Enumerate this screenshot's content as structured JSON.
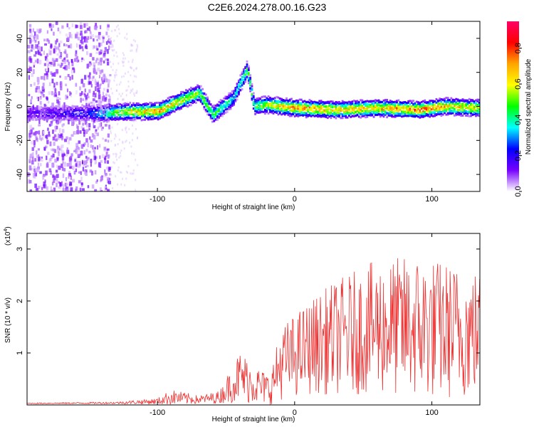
{
  "title": "C2E6.2024.278.00.16.G23",
  "chart_data": [
    {
      "type": "heatmap",
      "xlabel": "Height of straight line (km)",
      "ylabel": "Frequency (Hz)",
      "xlim": [
        -195,
        135
      ],
      "ylim": [
        -50,
        50
      ],
      "xticks": [
        -100,
        0,
        100
      ],
      "yticks": [
        -40,
        -20,
        0,
        20,
        40
      ],
      "colorbar": {
        "label": "Normalized spectral amplitude",
        "range": [
          0,
          0.95
        ],
        "ticks": [
          0.0,
          0.2,
          0.4,
          0.6,
          0.8
        ],
        "colormap": [
          "#ff0066",
          "#ff0000",
          "#ffa500",
          "#ffff00",
          "#00ff00",
          "#00ffff",
          "#0000ff",
          "#7700ff",
          "#ffffff"
        ]
      },
      "ridge": [
        {
          "x": -195,
          "f": -4,
          "a": 0.15
        },
        {
          "x": -150,
          "f": -4,
          "a": 0.25
        },
        {
          "x": -140,
          "f": -4,
          "a": 0.45
        },
        {
          "x": -120,
          "f": -3,
          "a": 0.65
        },
        {
          "x": -100,
          "f": -3,
          "a": 0.75
        },
        {
          "x": -90,
          "f": 1,
          "a": 0.7
        },
        {
          "x": -70,
          "f": 8,
          "a": 0.55
        },
        {
          "x": -60,
          "f": -5,
          "a": 0.5
        },
        {
          "x": -45,
          "f": 5,
          "a": 0.4
        },
        {
          "x": -35,
          "f": 22,
          "a": 0.5
        },
        {
          "x": -30,
          "f": 0,
          "a": 0.5
        },
        {
          "x": -20,
          "f": 1,
          "a": 0.6
        },
        {
          "x": 0,
          "f": -1,
          "a": 0.75
        },
        {
          "x": 30,
          "f": -2,
          "a": 0.7
        },
        {
          "x": 60,
          "f": -1,
          "a": 0.7
        },
        {
          "x": 90,
          "f": -2,
          "a": 0.8
        },
        {
          "x": 110,
          "f": 0,
          "a": 0.7
        },
        {
          "x": 135,
          "f": -1,
          "a": 0.65
        }
      ]
    },
    {
      "type": "line",
      "xlabel": "Height of straight line (km)",
      "ylabel": "SNR (10 * v/v)",
      "yscale_label": "(x10",
      "yscale_exp": "4",
      "xlim": [
        -195,
        135
      ],
      "ylim": [
        0,
        3.3
      ],
      "xticks": [
        -100,
        0,
        100
      ],
      "yticks": [
        1,
        2,
        3
      ],
      "color": "#ee3333",
      "envelope": [
        {
          "x": -195,
          "mean": 0.03,
          "spread": 0.01
        },
        {
          "x": -130,
          "mean": 0.04,
          "spread": 0.02
        },
        {
          "x": -100,
          "mean": 0.07,
          "spread": 0.06
        },
        {
          "x": -90,
          "mean": 0.15,
          "spread": 0.15
        },
        {
          "x": -70,
          "mean": 0.1,
          "spread": 0.08
        },
        {
          "x": -55,
          "mean": 0.15,
          "spread": 0.12
        },
        {
          "x": -40,
          "mean": 0.55,
          "spread": 0.5
        },
        {
          "x": -25,
          "mean": 0.35,
          "spread": 0.35
        },
        {
          "x": -18,
          "mean": 0.3,
          "spread": 0.3
        },
        {
          "x": -10,
          "mean": 0.8,
          "spread": 0.7
        },
        {
          "x": 10,
          "mean": 1.1,
          "spread": 0.9
        },
        {
          "x": 30,
          "mean": 1.3,
          "spread": 1.1
        },
        {
          "x": 60,
          "mean": 1.5,
          "spread": 1.3
        },
        {
          "x": 90,
          "mean": 1.5,
          "spread": 1.4
        },
        {
          "x": 120,
          "mean": 1.4,
          "spread": 1.3
        },
        {
          "x": 135,
          "mean": 1.4,
          "spread": 1.2
        }
      ]
    }
  ]
}
